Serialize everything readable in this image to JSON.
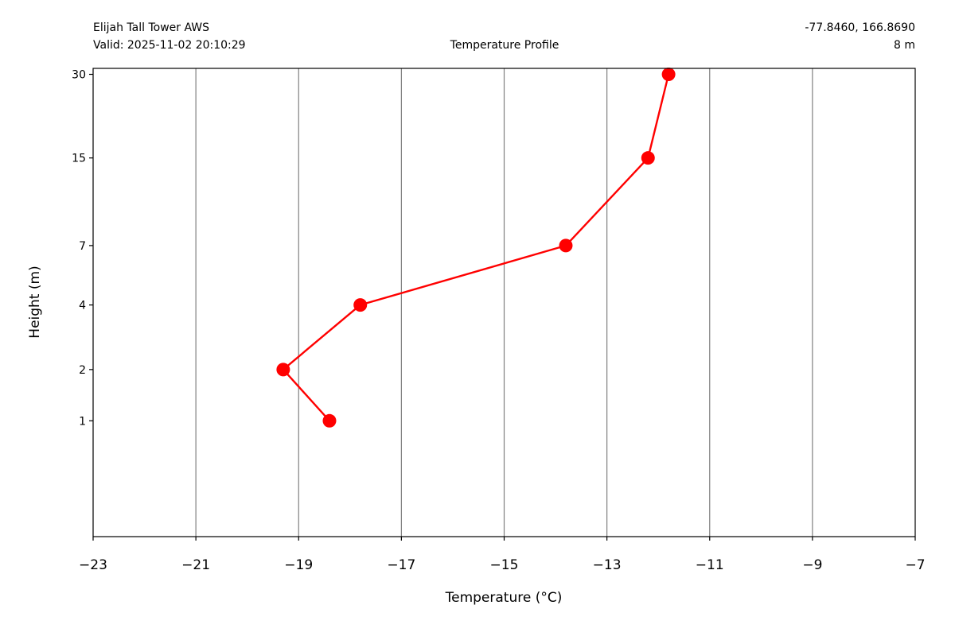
{
  "header": {
    "station_name": "Elijah Tall Tower AWS",
    "valid_time": "Valid: 2025-11-02 20:10:29",
    "title": "Temperature Profile",
    "coordinates": "-77.8460, 166.8690",
    "elevation": "8 m"
  },
  "chart_data": {
    "type": "line",
    "title": "Temperature Profile",
    "xlabel": "Temperature (°C)",
    "ylabel": "Height (m)",
    "xlim": [
      -23,
      -7
    ],
    "ylim": [
      -0.2,
      31.5
    ],
    "x_ticks": [
      -23,
      -21,
      -19,
      -17,
      -15,
      -13,
      -11,
      -9,
      -7
    ],
    "x_tick_labels": [
      "−23",
      "−21",
      "−19",
      "−17",
      "−15",
      "−13",
      "−11",
      "−9",
      "−7"
    ],
    "y_ticks": [
      1,
      2,
      4,
      7,
      15,
      30
    ],
    "y_tick_labels": [
      "1",
      "2",
      "4",
      "7",
      "15",
      "30"
    ],
    "y_scale": "log(1+h)",
    "grid": "vertical gridlines at x ticks",
    "series": [
      {
        "color": "#ff0000",
        "marker": "circle",
        "points": [
          {
            "x": -18.4,
            "y": 1
          },
          {
            "x": -19.3,
            "y": 2
          },
          {
            "x": -17.8,
            "y": 4
          },
          {
            "x": -13.8,
            "y": 7
          },
          {
            "x": -12.2,
            "y": 15
          },
          {
            "x": -11.8,
            "y": 30
          }
        ]
      }
    ]
  }
}
